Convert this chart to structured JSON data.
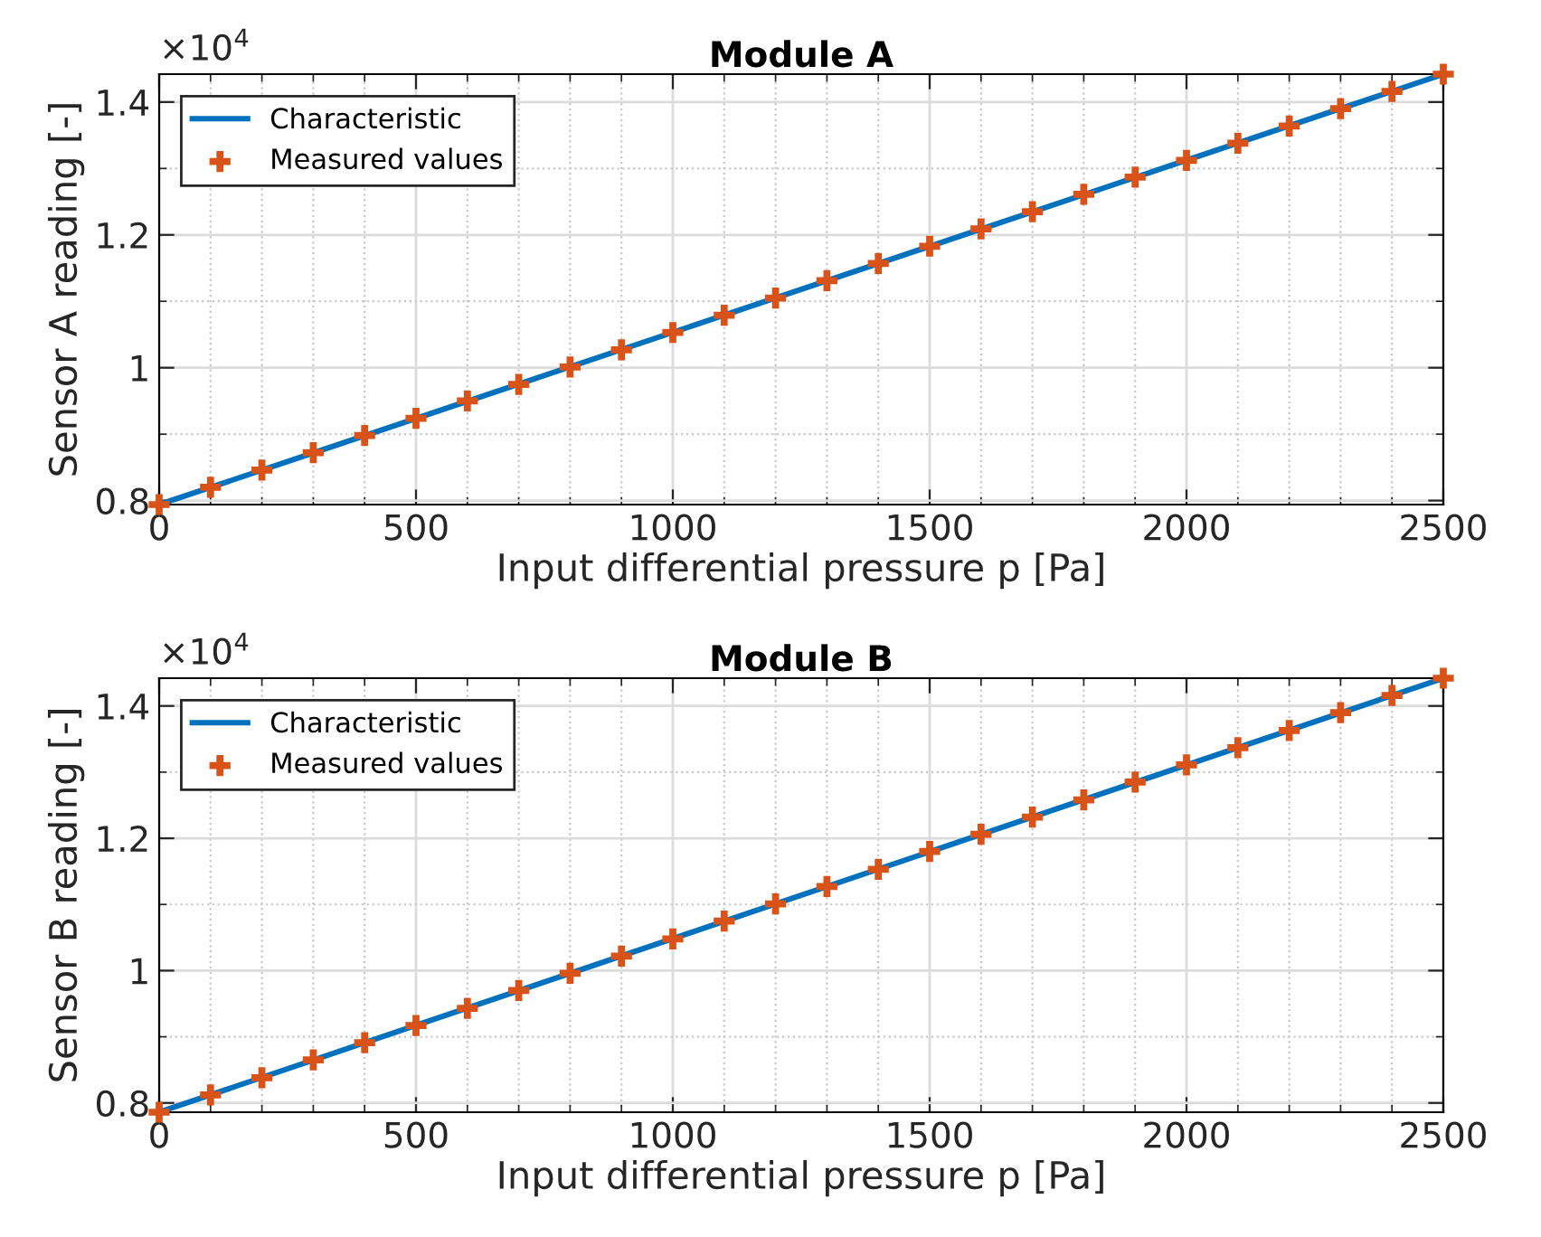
{
  "chart_data": [
    {
      "type": "line",
      "title": "Module A",
      "xlabel": "Input differential pressure p [Pa]",
      "ylabel": "Sensor A reading [-]",
      "annotations": [
        "×10$^{4}$"
      ],
      "xlim": [
        0,
        2500
      ],
      "xticks": [
        0,
        500,
        1000,
        1500,
        2000,
        2500
      ],
      "ylim": [
        0.794,
        1.442
      ],
      "yticks": [
        0.8,
        1,
        1.2,
        1.4
      ],
      "grid": true,
      "legend": "top left",
      "series": [
        {
          "name": "Characteristic",
          "color": "#0072bd",
          "marker": "none",
          "line_style": "solid",
          "x": [
            0,
            2500
          ],
          "values": [
            0.794,
            1.442
          ]
        },
        {
          "name": "Measured values",
          "type": "scatter",
          "color": "#d95319",
          "marker": "cross",
          "x": [
            0,
            100,
            200,
            300,
            400,
            500,
            600,
            700,
            800,
            900,
            1000,
            1100,
            1200,
            1300,
            1400,
            1500,
            1600,
            1700,
            1800,
            1900,
            2000,
            2100,
            2200,
            2300,
            2400,
            2500
          ],
          "values": [
            0.794,
            0.82,
            0.846,
            0.872,
            0.898,
            0.924,
            0.95,
            0.975,
            1.001,
            1.027,
            1.053,
            1.079,
            1.105,
            1.131,
            1.157,
            1.183,
            1.209,
            1.235,
            1.261,
            1.287,
            1.312,
            1.338,
            1.364,
            1.39,
            1.416,
            1.442
          ]
        }
      ]
    },
    {
      "type": "line",
      "title": "Module B",
      "xlabel": "Input differential pressure p [Pa]",
      "ylabel": "Sensor B reading [-]",
      "annotations": [
        "×10$^{4}$"
      ],
      "xlim": [
        0,
        2500
      ],
      "xticks": [
        0,
        500,
        1000,
        1500,
        2000,
        2500
      ],
      "ylim": [
        0.786,
        1.442
      ],
      "yticks": [
        0.8,
        1,
        1.2,
        1.4
      ],
      "grid": true,
      "legend": "top left",
      "series": [
        {
          "name": "Characteristic",
          "color": "#0072bd",
          "marker": "none",
          "line_style": "solid",
          "x": [
            0,
            2500
          ],
          "values": [
            0.786,
            1.442
          ]
        },
        {
          "name": "Measured values",
          "type": "scatter",
          "color": "#d95319",
          "marker": "cross",
          "x": [
            0,
            100,
            200,
            300,
            400,
            500,
            600,
            700,
            800,
            900,
            1000,
            1100,
            1200,
            1300,
            1400,
            1500,
            1600,
            1700,
            1800,
            1900,
            2000,
            2100,
            2200,
            2300,
            2400,
            2500
          ],
          "values": [
            0.786,
            0.812,
            0.838,
            0.865,
            0.891,
            0.917,
            0.943,
            0.97,
            0.996,
            1.022,
            1.048,
            1.075,
            1.101,
            1.127,
            1.153,
            1.18,
            1.206,
            1.232,
            1.258,
            1.285,
            1.311,
            1.337,
            1.363,
            1.39,
            1.416,
            1.442
          ]
        }
      ]
    }
  ]
}
